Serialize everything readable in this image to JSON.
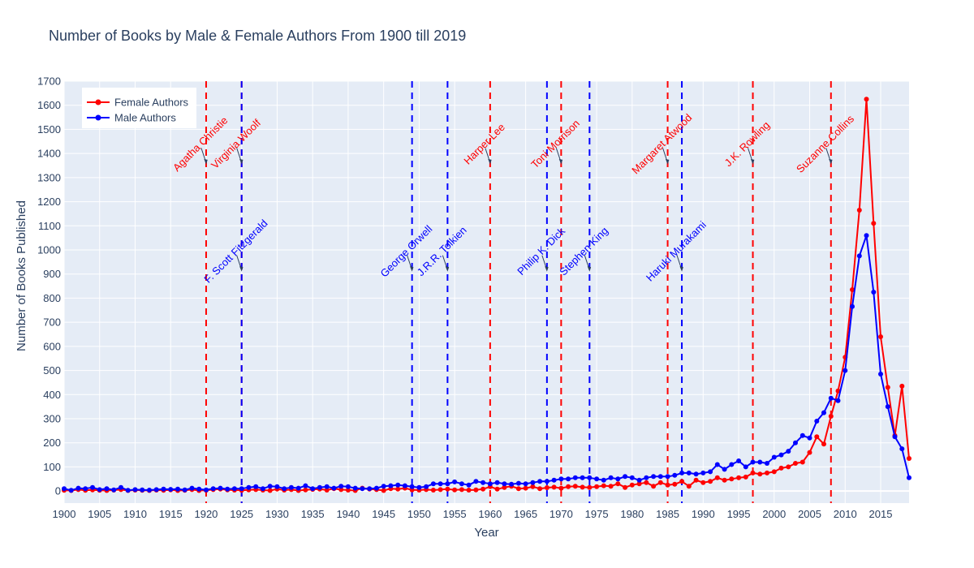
{
  "chart_data": {
    "type": "line",
    "title": "Number of Books by Male & Female Authors From 1900 till 2019",
    "xlabel": "Year",
    "ylabel": "Number of Books Published",
    "xlim": [
      1900,
      2019
    ],
    "ylim": [
      -50,
      1700
    ],
    "x_ticks": [
      1900,
      1905,
      1910,
      1915,
      1920,
      1925,
      1930,
      1935,
      1940,
      1945,
      1950,
      1955,
      1960,
      1965,
      1970,
      1975,
      1980,
      1985,
      1990,
      1995,
      2000,
      2005,
      2010,
      2015
    ],
    "y_ticks": [
      0,
      100,
      200,
      300,
      400,
      500,
      600,
      700,
      800,
      900,
      1000,
      1100,
      1200,
      1300,
      1400,
      1500,
      1600,
      1700
    ],
    "grid": true,
    "legend_position": "top-left",
    "colors": {
      "female": "#ff0000",
      "male": "#0000ff",
      "plot_bg": "#e5ecf6",
      "grid": "#ffffff",
      "text": "#2a3f5f"
    },
    "series": [
      {
        "name": "Female Authors",
        "color": "#ff0000",
        "x": [
          1900,
          1901,
          1902,
          1903,
          1904,
          1905,
          1906,
          1907,
          1908,
          1909,
          1910,
          1911,
          1912,
          1913,
          1914,
          1915,
          1916,
          1917,
          1918,
          1919,
          1920,
          1921,
          1922,
          1923,
          1924,
          1925,
          1926,
          1927,
          1928,
          1929,
          1930,
          1931,
          1932,
          1933,
          1934,
          1935,
          1936,
          1937,
          1938,
          1939,
          1940,
          1941,
          1942,
          1943,
          1944,
          1945,
          1946,
          1947,
          1948,
          1949,
          1950,
          1951,
          1952,
          1953,
          1954,
          1955,
          1956,
          1957,
          1958,
          1959,
          1960,
          1961,
          1962,
          1963,
          1964,
          1965,
          1966,
          1967,
          1968,
          1969,
          1970,
          1971,
          1972,
          1973,
          1974,
          1975,
          1976,
          1977,
          1978,
          1979,
          1980,
          1981,
          1982,
          1983,
          1984,
          1985,
          1986,
          1987,
          1988,
          1989,
          1990,
          1991,
          1992,
          1993,
          1994,
          1995,
          1996,
          1997,
          1998,
          1999,
          2000,
          2001,
          2002,
          2003,
          2004,
          2005,
          2006,
          2007,
          2008,
          2009,
          2010,
          2011,
          2012,
          2013,
          2014,
          2015,
          2016,
          2017,
          2018,
          2019
        ],
        "values": [
          3,
          2,
          6,
          3,
          5,
          3,
          2,
          4,
          6,
          2,
          4,
          3,
          2,
          4,
          3,
          5,
          2,
          3,
          6,
          2,
          3,
          6,
          8,
          5,
          4,
          3,
          5,
          6,
          4,
          2,
          8,
          4,
          6,
          2,
          5,
          7,
          8,
          4,
          10,
          6,
          4,
          2,
          12,
          8,
          6,
          2,
          10,
          8,
          12,
          5,
          4,
          6,
          4,
          6,
          8,
          5,
          6,
          4,
          5,
          8,
          18,
          8,
          15,
          20,
          10,
          12,
          18,
          10,
          14,
          16,
          12,
          18,
          20,
          16,
          15,
          18,
          22,
          20,
          30,
          15,
          25,
          30,
          35,
          20,
          35,
          25,
          28,
          40,
          20,
          45,
          35,
          40,
          55,
          45,
          50,
          55,
          58,
          75,
          70,
          75,
          80,
          95,
          100,
          115,
          120,
          160,
          225,
          195,
          310,
          415,
          555,
          835,
          1165,
          1625,
          1110,
          640,
          430,
          230,
          435,
          135
        ]
      },
      {
        "name": "Male Authors",
        "color": "#0000ff",
        "x": [
          1900,
          1901,
          1902,
          1903,
          1904,
          1905,
          1906,
          1907,
          1908,
          1909,
          1910,
          1911,
          1912,
          1913,
          1914,
          1915,
          1916,
          1917,
          1918,
          1919,
          1920,
          1921,
          1922,
          1923,
          1924,
          1925,
          1926,
          1927,
          1928,
          1929,
          1930,
          1931,
          1932,
          1933,
          1934,
          1935,
          1936,
          1937,
          1938,
          1939,
          1940,
          1941,
          1942,
          1943,
          1944,
          1945,
          1946,
          1947,
          1948,
          1949,
          1950,
          1951,
          1952,
          1953,
          1954,
          1955,
          1956,
          1957,
          1958,
          1959,
          1960,
          1961,
          1962,
          1963,
          1964,
          1965,
          1966,
          1967,
          1968,
          1969,
          1970,
          1971,
          1972,
          1973,
          1974,
          1975,
          1976,
          1977,
          1978,
          1979,
          1980,
          1981,
          1982,
          1983,
          1984,
          1985,
          1986,
          1987,
          1988,
          1989,
          1990,
          1991,
          1992,
          1993,
          1994,
          1995,
          1996,
          1997,
          1998,
          1999,
          2000,
          2001,
          2002,
          2003,
          2004,
          2005,
          2006,
          2007,
          2008,
          2009,
          2010,
          2011,
          2012,
          2013,
          2014,
          2015,
          2016,
          2017,
          2018,
          2019
        ],
        "values": [
          10,
          3,
          12,
          10,
          15,
          6,
          10,
          5,
          15,
          3,
          6,
          5,
          4,
          6,
          8,
          7,
          8,
          5,
          12,
          8,
          5,
          10,
          12,
          8,
          10,
          10,
          15,
          18,
          10,
          20,
          18,
          10,
          15,
          12,
          22,
          10,
          15,
          18,
          12,
          20,
          18,
          12,
          10,
          10,
          12,
          20,
          22,
          25,
          22,
          18,
          15,
          18,
          30,
          30,
          30,
          38,
          30,
          25,
          40,
          35,
          30,
          35,
          30,
          28,
          32,
          30,
          35,
          40,
          40,
          45,
          50,
          50,
          55,
          55,
          55,
          50,
          45,
          55,
          50,
          60,
          55,
          45,
          55,
          60,
          60,
          60,
          65,
          75,
          75,
          70,
          75,
          80,
          110,
          90,
          110,
          125,
          100,
          120,
          120,
          115,
          140,
          150,
          165,
          200,
          230,
          220,
          290,
          325,
          385,
          375,
          500,
          765,
          975,
          1060,
          825,
          485,
          350,
          225,
          175,
          55
        ]
      }
    ],
    "annotations": [
      {
        "label": "Agatha Christie",
        "year": 1920,
        "group": "female"
      },
      {
        "label": "Virginia Woolf",
        "year": 1925,
        "group": "female"
      },
      {
        "label": "F. Scott Fitzgerald",
        "year": 1925,
        "group": "male"
      },
      {
        "label": "George Orwell",
        "year": 1949,
        "group": "male"
      },
      {
        "label": "J.R.R. Tolkien",
        "year": 1954,
        "group": "male"
      },
      {
        "label": "Harper Lee",
        "year": 1960,
        "group": "female"
      },
      {
        "label": "Philip K. Dick",
        "year": 1968,
        "group": "male"
      },
      {
        "label": "Toni Morrison",
        "year": 1970,
        "group": "female"
      },
      {
        "label": "Stephen King",
        "year": 1974,
        "group": "male"
      },
      {
        "label": "Margaret Atwood",
        "year": 1985,
        "group": "female"
      },
      {
        "label": "Haruki Murakami",
        "year": 1987,
        "group": "male"
      },
      {
        "label": "J.K. Rowling",
        "year": 1997,
        "group": "female"
      },
      {
        "label": "Suzanne Collins",
        "year": 2008,
        "group": "female"
      }
    ]
  }
}
